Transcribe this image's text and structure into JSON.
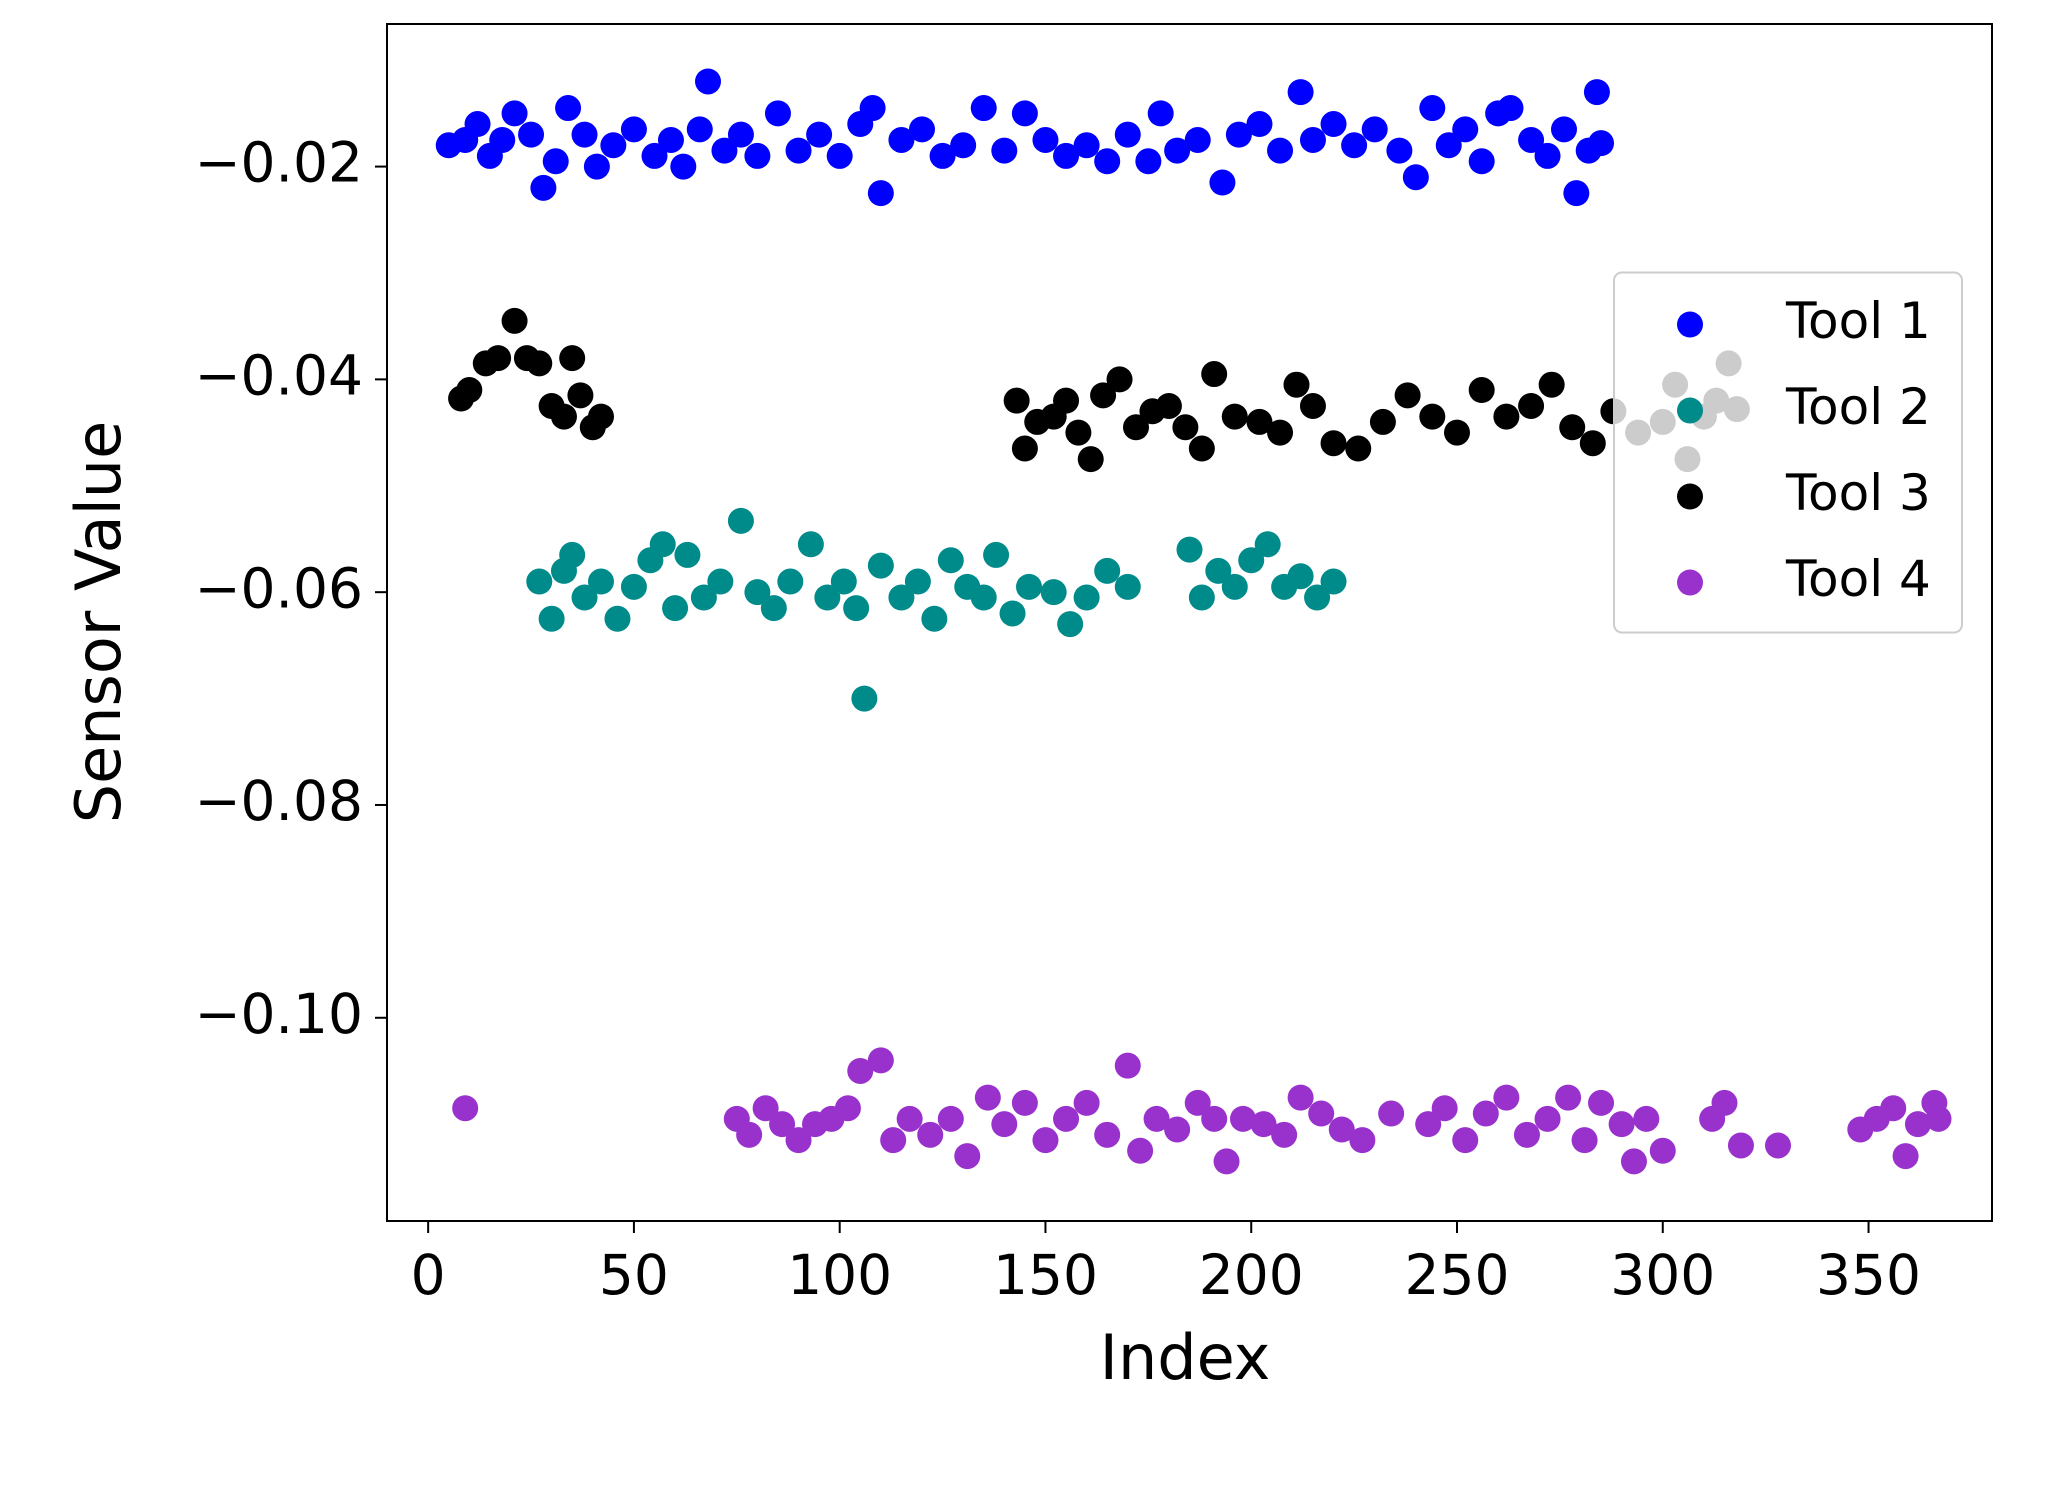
{
  "chart_data": {
    "type": "scatter",
    "x_label": "Index",
    "y_label": "Sensor Value",
    "xlim": [
      -10,
      380
    ],
    "ylim": [
      -0.1191,
      -0.0066
    ],
    "xticks": [
      0,
      50,
      100,
      150,
      200,
      250,
      300,
      350
    ],
    "yticks": [
      {
        "value": -0.02,
        "label": "−0.02"
      },
      {
        "value": -0.04,
        "label": "−0.04"
      },
      {
        "value": -0.06,
        "label": "−0.06"
      },
      {
        "value": -0.08,
        "label": "−0.08"
      },
      {
        "value": -0.1,
        "label": "−0.10"
      }
    ],
    "grid": false,
    "legend": "center right",
    "series": [
      {
        "name": "Tool 1",
        "color": "#0000ff",
        "x": [
          5,
          9,
          12,
          15,
          18,
          21,
          25,
          28,
          31,
          34,
          38,
          41,
          45,
          50,
          55,
          59,
          62,
          66,
          68,
          72,
          76,
          80,
          85,
          90,
          95,
          100,
          105,
          108,
          110,
          115,
          120,
          125,
          130,
          135,
          140,
          145,
          150,
          155,
          160,
          165,
          170,
          175,
          178,
          182,
          187,
          193,
          197,
          202,
          207,
          212,
          215,
          220,
          225,
          230,
          236,
          240,
          244,
          248,
          252,
          256,
          260,
          263,
          268,
          272,
          276,
          279,
          282,
          284,
          285
        ],
        "values": [
          -0.018,
          -0.0175,
          -0.016,
          -0.019,
          -0.0175,
          -0.015,
          -0.017,
          -0.022,
          -0.0195,
          -0.0145,
          -0.017,
          -0.02,
          -0.018,
          -0.0165,
          -0.019,
          -0.0175,
          -0.02,
          -0.0165,
          -0.012,
          -0.0185,
          -0.017,
          -0.019,
          -0.015,
          -0.0185,
          -0.017,
          -0.019,
          -0.016,
          -0.0145,
          -0.0225,
          -0.0175,
          -0.0165,
          -0.019,
          -0.018,
          -0.0145,
          -0.0185,
          -0.015,
          -0.0175,
          -0.019,
          -0.018,
          -0.0195,
          -0.017,
          -0.0195,
          -0.015,
          -0.0185,
          -0.0175,
          -0.0215,
          -0.017,
          -0.016,
          -0.0185,
          -0.013,
          -0.0175,
          -0.016,
          -0.018,
          -0.0165,
          -0.0185,
          -0.021,
          -0.0145,
          -0.018,
          -0.0165,
          -0.0195,
          -0.015,
          -0.0145,
          -0.0175,
          -0.019,
          -0.0165,
          -0.0225,
          -0.0185,
          -0.013,
          -0.0178
        ]
      },
      {
        "name": "Tool 2",
        "color": "#008b8b",
        "x": [
          27,
          30,
          33,
          35,
          38,
          42,
          46,
          50,
          54,
          57,
          60,
          63,
          67,
          71,
          76,
          80,
          84,
          88,
          93,
          97,
          101,
          104,
          106,
          110,
          115,
          119,
          123,
          127,
          131,
          135,
          138,
          142,
          146,
          152,
          156,
          160,
          165,
          170,
          185,
          188,
          192,
          196,
          200,
          204,
          208,
          212,
          216,
          220
        ],
        "values": [
          -0.059,
          -0.0625,
          -0.058,
          -0.0565,
          -0.0605,
          -0.059,
          -0.0625,
          -0.0595,
          -0.057,
          -0.0555,
          -0.0615,
          -0.0565,
          -0.0605,
          -0.059,
          -0.0533,
          -0.06,
          -0.0615,
          -0.059,
          -0.0555,
          -0.0605,
          -0.059,
          -0.0615,
          -0.07,
          -0.0575,
          -0.0605,
          -0.059,
          -0.0625,
          -0.057,
          -0.0595,
          -0.0605,
          -0.0565,
          -0.062,
          -0.0595,
          -0.06,
          -0.063,
          -0.0605,
          -0.058,
          -0.0595,
          -0.056,
          -0.0605,
          -0.058,
          -0.0595,
          -0.057,
          -0.0555,
          -0.0595,
          -0.0585,
          -0.0605,
          -0.059
        ]
      },
      {
        "name": "Tool 3",
        "color": "#000000",
        "x": [
          8,
          10,
          14,
          17,
          21,
          24,
          27,
          30,
          33,
          35,
          37,
          40,
          42,
          143,
          145,
          148,
          152,
          155,
          158,
          161,
          164,
          168,
          172,
          176,
          180,
          184,
          188,
          191,
          196,
          202,
          207,
          211,
          215,
          220,
          226,
          232,
          238,
          244,
          250,
          256,
          262,
          268,
          273,
          278,
          283,
          288,
          294,
          300,
          303,
          306,
          310,
          313,
          316,
          318
        ],
        "values": [
          -0.0418,
          -0.041,
          -0.0385,
          -0.038,
          -0.0345,
          -0.038,
          -0.0385,
          -0.0425,
          -0.0435,
          -0.038,
          -0.0415,
          -0.0445,
          -0.0435,
          -0.042,
          -0.0465,
          -0.044,
          -0.0435,
          -0.042,
          -0.045,
          -0.0475,
          -0.0415,
          -0.04,
          -0.0445,
          -0.043,
          -0.0425,
          -0.0445,
          -0.0465,
          -0.0395,
          -0.0435,
          -0.044,
          -0.045,
          -0.0405,
          -0.0425,
          -0.046,
          -0.0465,
          -0.044,
          -0.0415,
          -0.0435,
          -0.045,
          -0.041,
          -0.0435,
          -0.0425,
          -0.0405,
          -0.0445,
          -0.046,
          -0.043,
          -0.045,
          -0.044,
          -0.0405,
          -0.0475,
          -0.0435,
          -0.042,
          -0.0385,
          -0.0428
        ]
      },
      {
        "name": "Tool 4",
        "color": "#9932cc",
        "x": [
          9,
          75,
          78,
          82,
          86,
          90,
          94,
          98,
          102,
          105,
          110,
          113,
          117,
          122,
          127,
          131,
          136,
          140,
          145,
          150,
          155,
          160,
          165,
          170,
          173,
          177,
          182,
          187,
          191,
          194,
          198,
          203,
          208,
          212,
          217,
          222,
          227,
          234,
          243,
          247,
          252,
          257,
          262,
          267,
          272,
          277,
          281,
          285,
          290,
          293,
          296,
          300,
          312,
          315,
          319,
          328,
          348,
          352,
          356,
          359,
          362,
          366,
          367
        ],
        "values": [
          -0.1085,
          -0.1095,
          -0.111,
          -0.1085,
          -0.11,
          -0.1115,
          -0.11,
          -0.1095,
          -0.1085,
          -0.105,
          -0.104,
          -0.1115,
          -0.1095,
          -0.111,
          -0.1095,
          -0.113,
          -0.1075,
          -0.11,
          -0.108,
          -0.1115,
          -0.1095,
          -0.108,
          -0.111,
          -0.1045,
          -0.1125,
          -0.1095,
          -0.1105,
          -0.108,
          -0.1095,
          -0.1135,
          -0.1095,
          -0.11,
          -0.111,
          -0.1075,
          -0.109,
          -0.1105,
          -0.1115,
          -0.109,
          -0.11,
          -0.1085,
          -0.1115,
          -0.109,
          -0.1075,
          -0.111,
          -0.1095,
          -0.1075,
          -0.1115,
          -0.108,
          -0.11,
          -0.1135,
          -0.1095,
          -0.1125,
          -0.1095,
          -0.108,
          -0.112,
          -0.112,
          -0.1105,
          -0.1095,
          -0.1085,
          -0.113,
          -0.11,
          -0.108,
          -0.1095
        ]
      }
    ]
  }
}
